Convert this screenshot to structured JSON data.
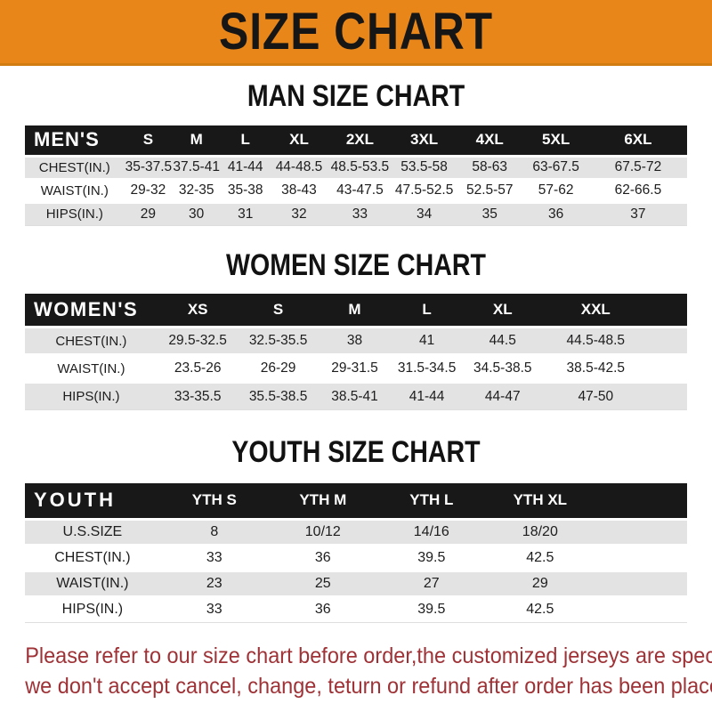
{
  "banner": {
    "title": "SIZE CHART"
  },
  "colors": {
    "banner_orange": "#E8861A",
    "header_black": "#181818",
    "row_gray": "#E3E3E4",
    "note_red": "#9E3236"
  },
  "sections": {
    "men": {
      "heading": "MAN SIZE CHART",
      "table": {
        "label": "MEN'S",
        "columns": [
          "S",
          "M",
          "L",
          "XL",
          "2XL",
          "3XL",
          "4XL",
          "5XL",
          "6XL"
        ],
        "rows": [
          {
            "label": "CHEST(IN.)",
            "values": [
              "35-37.5",
              "37.5-41",
              "41-44",
              "44-48.5",
              "48.5-53.5",
              "53.5-58",
              "58-63",
              "63-67.5",
              "67.5-72"
            ]
          },
          {
            "label": "WAIST(IN.)",
            "values": [
              "29-32",
              "32-35",
              "35-38",
              "38-43",
              "43-47.5",
              "47.5-52.5",
              "52.5-57",
              "57-62",
              "62-66.5"
            ]
          },
          {
            "label": "HIPS(IN.)",
            "values": [
              "29",
              "30",
              "31",
              "32",
              "33",
              "34",
              "35",
              "36",
              "37"
            ]
          }
        ]
      }
    },
    "women": {
      "heading": "WOMEN SIZE CHART",
      "table": {
        "label": "WOMEN'S",
        "columns": [
          "XS",
          "S",
          "M",
          "L",
          "XL",
          "XXL"
        ],
        "rows": [
          {
            "label": "CHEST(IN.)",
            "values": [
              "29.5-32.5",
              "32.5-35.5",
              "38",
              "41",
              "44.5",
              "44.5-48.5"
            ]
          },
          {
            "label": "WAIST(IN.)",
            "values": [
              "23.5-26",
              "26-29",
              "29-31.5",
              "31.5-34.5",
              "34.5-38.5",
              "38.5-42.5"
            ]
          },
          {
            "label": "HIPS(IN.)",
            "values": [
              "33-35.5",
              "35.5-38.5",
              "38.5-41",
              "41-44",
              "44-47",
              "47-50"
            ]
          }
        ]
      }
    },
    "youth": {
      "heading": "YOUTH SIZE CHART",
      "table": {
        "label": "YOUTH",
        "columns": [
          "YTH S",
          "YTH M",
          "YTH L",
          "YTH XL"
        ],
        "rows": [
          {
            "label": "U.S.SIZE",
            "values": [
              "8",
              "10/12",
              "14/16",
              "18/20"
            ]
          },
          {
            "label": "CHEST(IN.)",
            "values": [
              "33",
              "36",
              "39.5",
              "42.5"
            ]
          },
          {
            "label": "WAIST(IN.)",
            "values": [
              "23",
              "25",
              "27",
              "29"
            ]
          },
          {
            "label": "HIPS(IN.)",
            "values": [
              "33",
              "36",
              "39.5",
              "42.5"
            ]
          }
        ]
      }
    }
  },
  "note": {
    "line1": "Please refer to our size chart before order,the customized jerseys are special products,",
    "line2": "we don't accept cancel, change, teturn or refund after order has been placed!"
  }
}
